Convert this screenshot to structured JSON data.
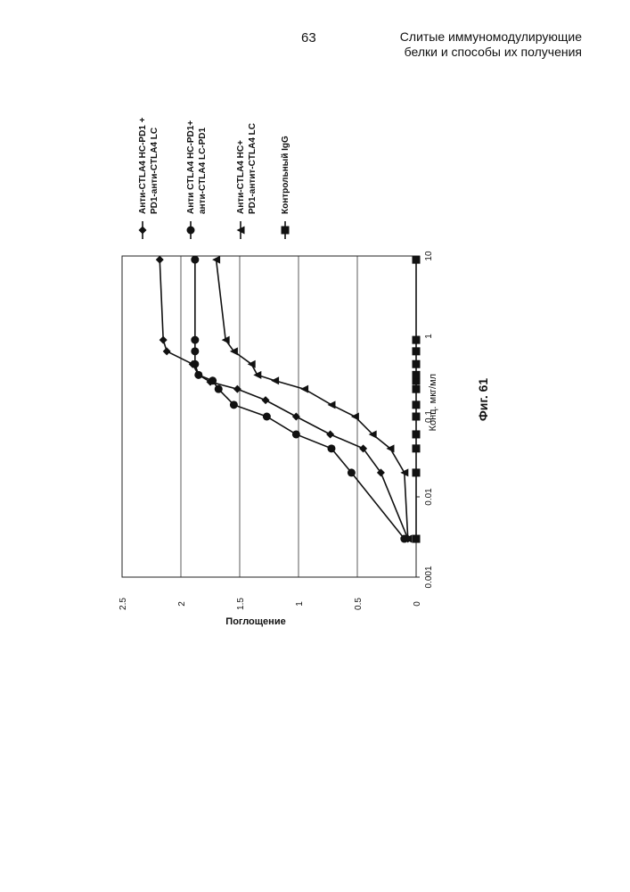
{
  "header": {
    "page_number": "63",
    "title_line1": "Слитые иммуномодулирующие",
    "title_line2": "белки и способы их получения"
  },
  "figure_caption": "Фиг. 61",
  "chart_data": {
    "type": "line",
    "orientation": "rotated-90-clockwise",
    "xlabel": "Конц. мкг/мл",
    "ylabel": "Поглощение",
    "xscale": "log",
    "xlim": [
      0.001,
      10
    ],
    "ylim": [
      0,
      2.5
    ],
    "x_ticks": [
      "0.001",
      "0.01",
      "0.1",
      "1",
      "10"
    ],
    "y_ticks": [
      "0",
      "0.5",
      "1",
      "1.5",
      "2",
      "2.5"
    ],
    "grid": "horizontal",
    "legend_position": "top",
    "series": [
      {
        "name": "Анти-CTLA4 HC-PD1 + PD1-анти-CTLA4 LC",
        "name_line1": "Анти-CTLA4 HC-PD1 +",
        "name_line2": "PD1-анти-CTLA4 LC",
        "marker": "diamond",
        "x": [
          0.003,
          0.02,
          0.04,
          0.06,
          0.1,
          0.16,
          0.22,
          0.27,
          0.33,
          0.45,
          0.65,
          0.9,
          9
        ],
        "y": [
          0.07,
          0.3,
          0.45,
          0.73,
          1.02,
          1.28,
          1.52,
          1.75,
          1.85,
          1.9,
          2.12,
          2.15,
          2.18
        ]
      },
      {
        "name": "Анти CTLA4 HC-PD1+ анти-CTLA4 LC-PD1",
        "name_line1": "Анти CTLA4 HC-PD1+",
        "name_line2": "анти-CTLA4 LC-PD1",
        "marker": "circle",
        "x": [
          0.003,
          0.02,
          0.04,
          0.06,
          0.1,
          0.14,
          0.22,
          0.28,
          0.33,
          0.45,
          0.65,
          0.9,
          9
        ],
        "y": [
          0.1,
          0.55,
          0.72,
          1.02,
          1.27,
          1.55,
          1.68,
          1.73,
          1.85,
          1.88,
          1.88,
          1.88,
          1.88
        ]
      },
      {
        "name": "Анти-CTLA4 HC+ PD1-антит-CTLA4 LC",
        "name_line1": "Анти-CTLA4 HC+",
        "name_line2": "PD1-антит-CTLA4 LC",
        "marker": "triangle",
        "x": [
          0.003,
          0.02,
          0.04,
          0.06,
          0.1,
          0.14,
          0.22,
          0.28,
          0.33,
          0.45,
          0.65,
          0.9,
          9
        ],
        "y": [
          0.07,
          0.1,
          0.22,
          0.37,
          0.52,
          0.72,
          0.95,
          1.2,
          1.35,
          1.4,
          1.55,
          1.62,
          1.7
        ]
      },
      {
        "name": "Контрольный IgG",
        "name_line1": "Контрольный IgG",
        "name_line2": "",
        "marker": "square",
        "x": [
          0.003,
          0.02,
          0.04,
          0.06,
          0.1,
          0.14,
          0.22,
          0.28,
          0.33,
          0.45,
          0.65,
          0.9,
          9
        ],
        "y": [
          0.0,
          0.0,
          0.0,
          0.0,
          0.0,
          0.0,
          0.0,
          0.0,
          0.0,
          0.0,
          0.0,
          0.0,
          0.0
        ]
      }
    ]
  }
}
